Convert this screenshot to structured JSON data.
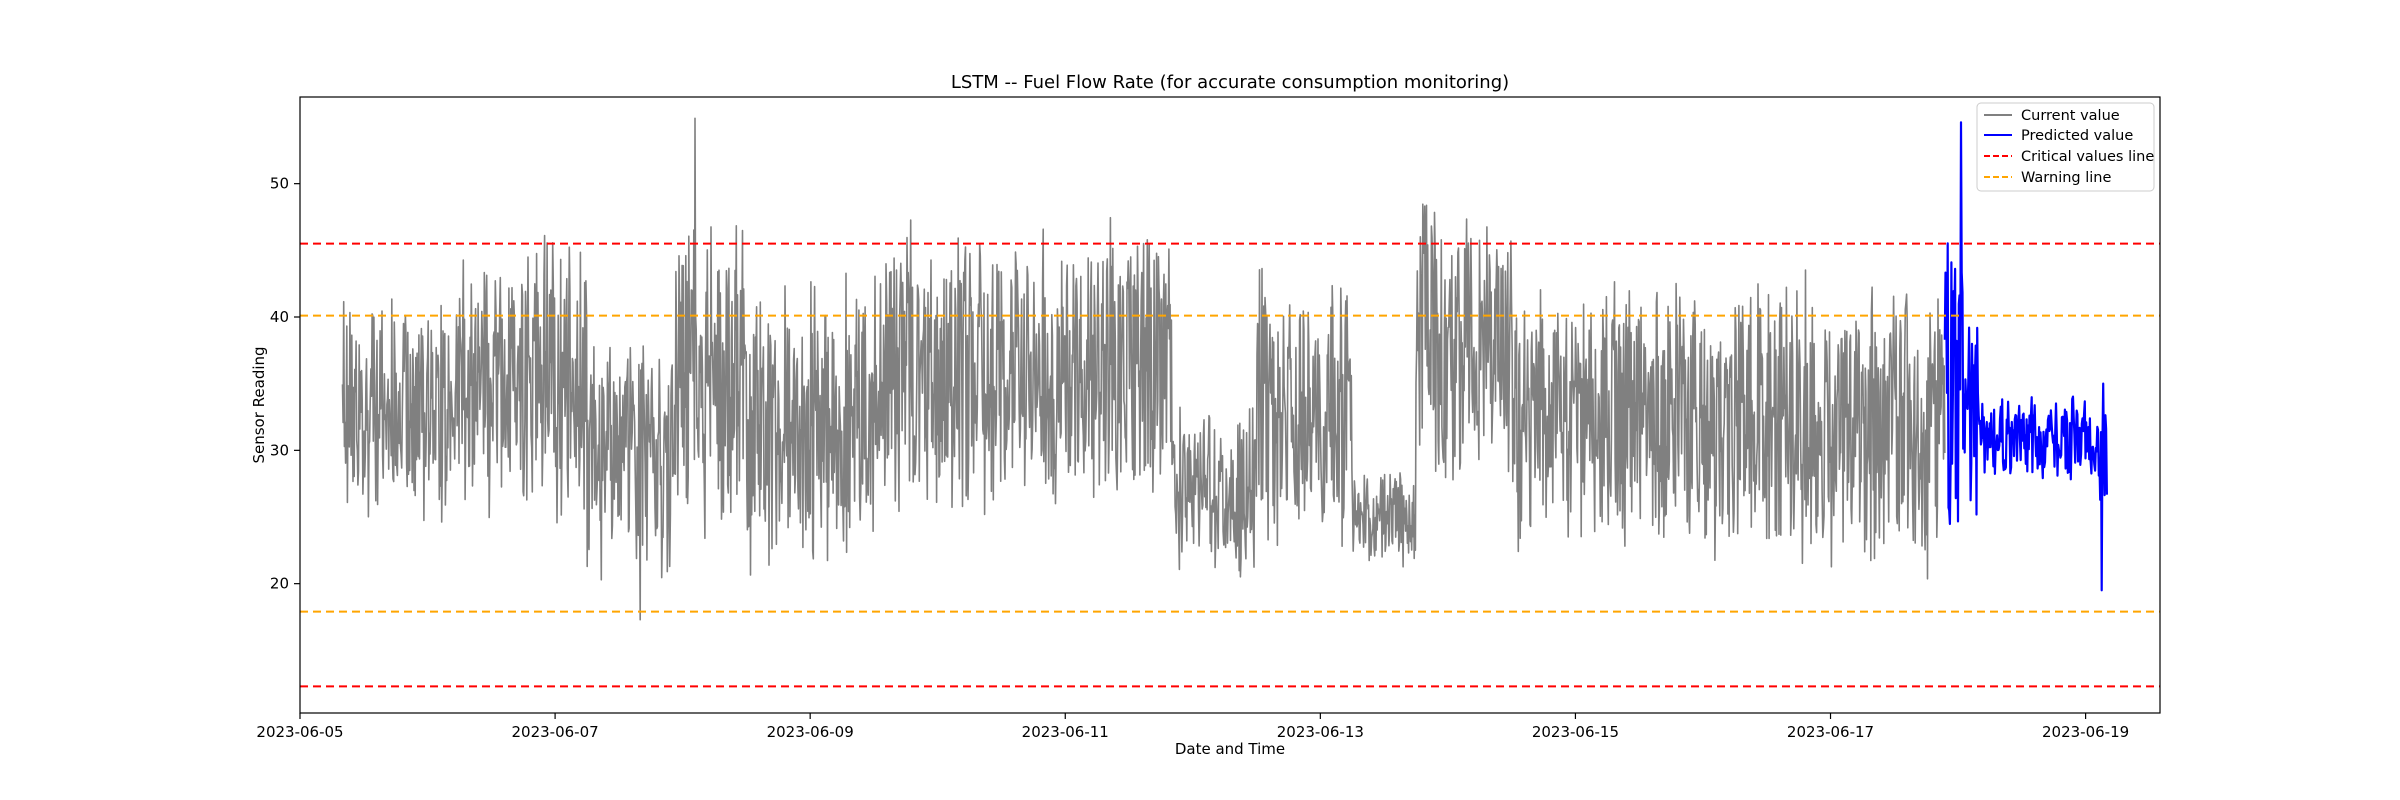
{
  "chart_data": {
    "type": "line",
    "title": "LSTM -- Fuel Flow Rate (for accurate consumption monitoring)",
    "xlabel": "Date and Time",
    "ylabel": "Sensor Reading",
    "xlim": [
      "2023-06-05 00:00",
      "2023-06-19 14:00"
    ],
    "ylim": [
      10.3,
      56.5
    ],
    "xticks": [
      "2023-06-05",
      "2023-06-07",
      "2023-06-09",
      "2023-06-11",
      "2023-06-13",
      "2023-06-15",
      "2023-06-17",
      "2023-06-19"
    ],
    "yticks": [
      20,
      30,
      40,
      50
    ],
    "grid": false,
    "legend_position": "top-right",
    "series": [
      {
        "name": "Current value",
        "color": "#808080",
        "start": "2023-06-05 08:00",
        "end": "2023-06-17 21:30",
        "range": [
          17.3,
          54.9
        ],
        "profile": [
          {
            "until": "2023-06-06 06:00",
            "center": 33,
            "spread": 9
          },
          {
            "until": "2023-06-06 20:00",
            "center": 35,
            "spread": 11
          },
          {
            "until": "2023-06-07 06:00",
            "center": 36,
            "spread": 13
          },
          {
            "until": "2023-06-07 22:00",
            "center": 29,
            "spread": 10
          },
          {
            "until": "2023-06-08 12:00",
            "center": 35,
            "spread": 12
          },
          {
            "until": "2023-06-09 12:00",
            "center": 32,
            "spread": 12
          },
          {
            "until": "2023-06-11 20:00",
            "center": 36,
            "spread": 12
          },
          {
            "until": "2023-06-12 12:00",
            "center": 27,
            "spread": 7
          },
          {
            "until": "2023-06-13 06:00",
            "center": 33,
            "spread": 11
          },
          {
            "until": "2023-06-13 18:00",
            "center": 25,
            "spread": 4
          },
          {
            "until": "2023-06-14 12:00",
            "center": 38,
            "spread": 12
          },
          {
            "until": "2023-06-15 12:00",
            "center": 33,
            "spread": 11
          },
          {
            "until": "2023-06-16 12:00",
            "center": 32,
            "spread": 11
          },
          {
            "until": "2023-06-17 21:30",
            "center": 32,
            "spread": 12
          }
        ]
      },
      {
        "name": "Predicted value",
        "color": "#0000ff",
        "start": "2023-06-17 21:30",
        "end": "2023-06-19 04:00",
        "range": [
          19.5,
          54.6
        ],
        "profile": [
          {
            "until": "2023-06-18 04:00",
            "center": 35,
            "spread": 13
          },
          {
            "until": "2023-06-19 02:00",
            "center": 31,
            "spread": 3.5
          },
          {
            "until": "2023-06-19 04:00",
            "center": 30,
            "spread": 6
          }
        ]
      }
    ],
    "reference_lines": [
      {
        "name": "Critical values line",
        "color": "#ff0000",
        "style": "dashed",
        "values": [
          45.5,
          12.3
        ]
      },
      {
        "name": "Warning line",
        "color": "#ffa500",
        "style": "dashed",
        "values": [
          40.1,
          17.9
        ]
      }
    ]
  }
}
